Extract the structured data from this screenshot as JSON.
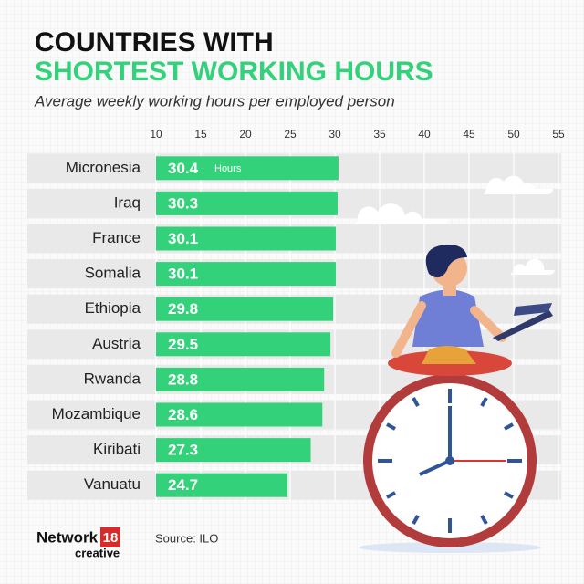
{
  "chart_data": {
    "type": "bar",
    "orientation": "horizontal",
    "title": [
      "COUNTRIES WITH",
      "SHORTEST WORKING HOURS"
    ],
    "subtitle": "Average weekly working hours per employed person",
    "categories": [
      "Micronesia",
      "Iraq",
      "France",
      "Somalia",
      "Ethiopia",
      "Austria",
      "Rwanda",
      "Mozambique",
      "Kiribati",
      "Vanuatu"
    ],
    "values": [
      30.4,
      30.3,
      30.1,
      30.1,
      29.8,
      29.5,
      28.8,
      28.6,
      27.3,
      24.7
    ],
    "annotation": "Hours",
    "color": "#33d17a",
    "xlim": [
      10,
      55
    ],
    "xticks": [
      10,
      15,
      20,
      25,
      30,
      35,
      40,
      45,
      50,
      55
    ],
    "grid": true,
    "source": "Source: ILO"
  },
  "brand": {
    "name": "Network",
    "number": "18",
    "sub": "creative"
  }
}
